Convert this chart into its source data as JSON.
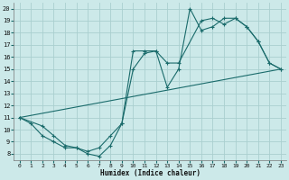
{
  "xlabel": "Humidex (Indice chaleur)",
  "background_color": "#cce9e9",
  "grid_color": "#aacfcf",
  "line_color": "#1a6b6b",
  "xlim": [
    -0.5,
    23.5
  ],
  "ylim": [
    7.5,
    20.5
  ],
  "x_ticks": [
    0,
    1,
    2,
    3,
    4,
    5,
    6,
    7,
    8,
    9,
    10,
    11,
    12,
    13,
    14,
    15,
    16,
    17,
    18,
    19,
    20,
    21,
    22,
    23
  ],
  "y_ticks": [
    8,
    9,
    10,
    11,
    12,
    13,
    14,
    15,
    16,
    17,
    18,
    19,
    20
  ],
  "line1_x": [
    0,
    1,
    2,
    3,
    4,
    5,
    6,
    7,
    8,
    9,
    10,
    11,
    12,
    13,
    14,
    15,
    16,
    17,
    18,
    19,
    20,
    21,
    22,
    23
  ],
  "line1_y": [
    11,
    10.5,
    9.5,
    9,
    8.5,
    8.5,
    8,
    7.8,
    8.7,
    10.5,
    16.5,
    16.5,
    16.5,
    13.5,
    15,
    20,
    18.2,
    18.5,
    19.2,
    19.2,
    18.5,
    17.3,
    15.5,
    15
  ],
  "line2_x": [
    0,
    2,
    3,
    4,
    5,
    6,
    7,
    8,
    9,
    10,
    11,
    12,
    13,
    14,
    16,
    17,
    18,
    19,
    20,
    21,
    22,
    23
  ],
  "line2_y": [
    11,
    10.3,
    9.5,
    8.7,
    8.5,
    8.2,
    8.5,
    9.5,
    10.5,
    15,
    16.3,
    16.5,
    15.5,
    15.5,
    19,
    19.2,
    18.7,
    19.2,
    18.5,
    17.3,
    15.5,
    15
  ],
  "line3_x": [
    0,
    23
  ],
  "line3_y": [
    11,
    15
  ]
}
